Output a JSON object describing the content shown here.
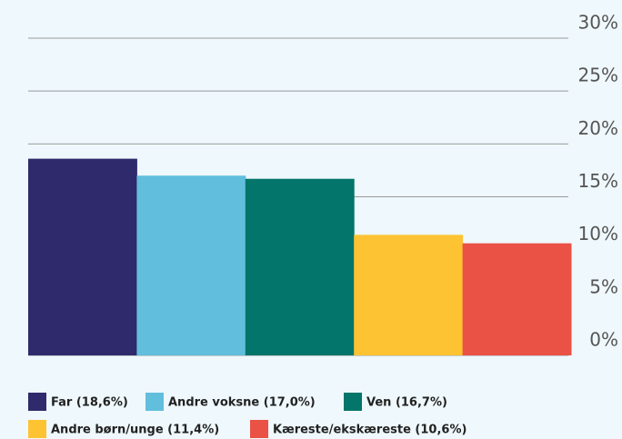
{
  "chart_data": {
    "type": "bar",
    "series": [
      {
        "name": "Far (18,6%)",
        "color": "#2f2a6b",
        "values": [
          18.6
        ]
      },
      {
        "name": "Andre voksne (17,0%)",
        "color": "#62bedd",
        "values": [
          17.0
        ]
      },
      {
        "name": "Ven (16,7%)",
        "color": "#03756a",
        "values": [
          16.7
        ]
      },
      {
        "name": "Andre børn/unge (11,4%)",
        "color": "#fec333",
        "values": [
          11.4
        ]
      },
      {
        "name": "Kæreste/ekskæreste (10,6%)",
        "color": "#ea5245",
        "values": [
          10.6
        ]
      }
    ],
    "ylim": [
      0,
      30
    ],
    "yticks": [
      {
        "value": 0,
        "label": "0%"
      },
      {
        "value": 5,
        "label": "5%"
      },
      {
        "value": 10,
        "label": "10%"
      },
      {
        "value": 15,
        "label": "15%"
      },
      {
        "value": 20,
        "label": "20%"
      },
      {
        "value": 25,
        "label": "25%"
      },
      {
        "value": 30,
        "label": "30%"
      }
    ],
    "grid": true,
    "legend": "bottom"
  }
}
